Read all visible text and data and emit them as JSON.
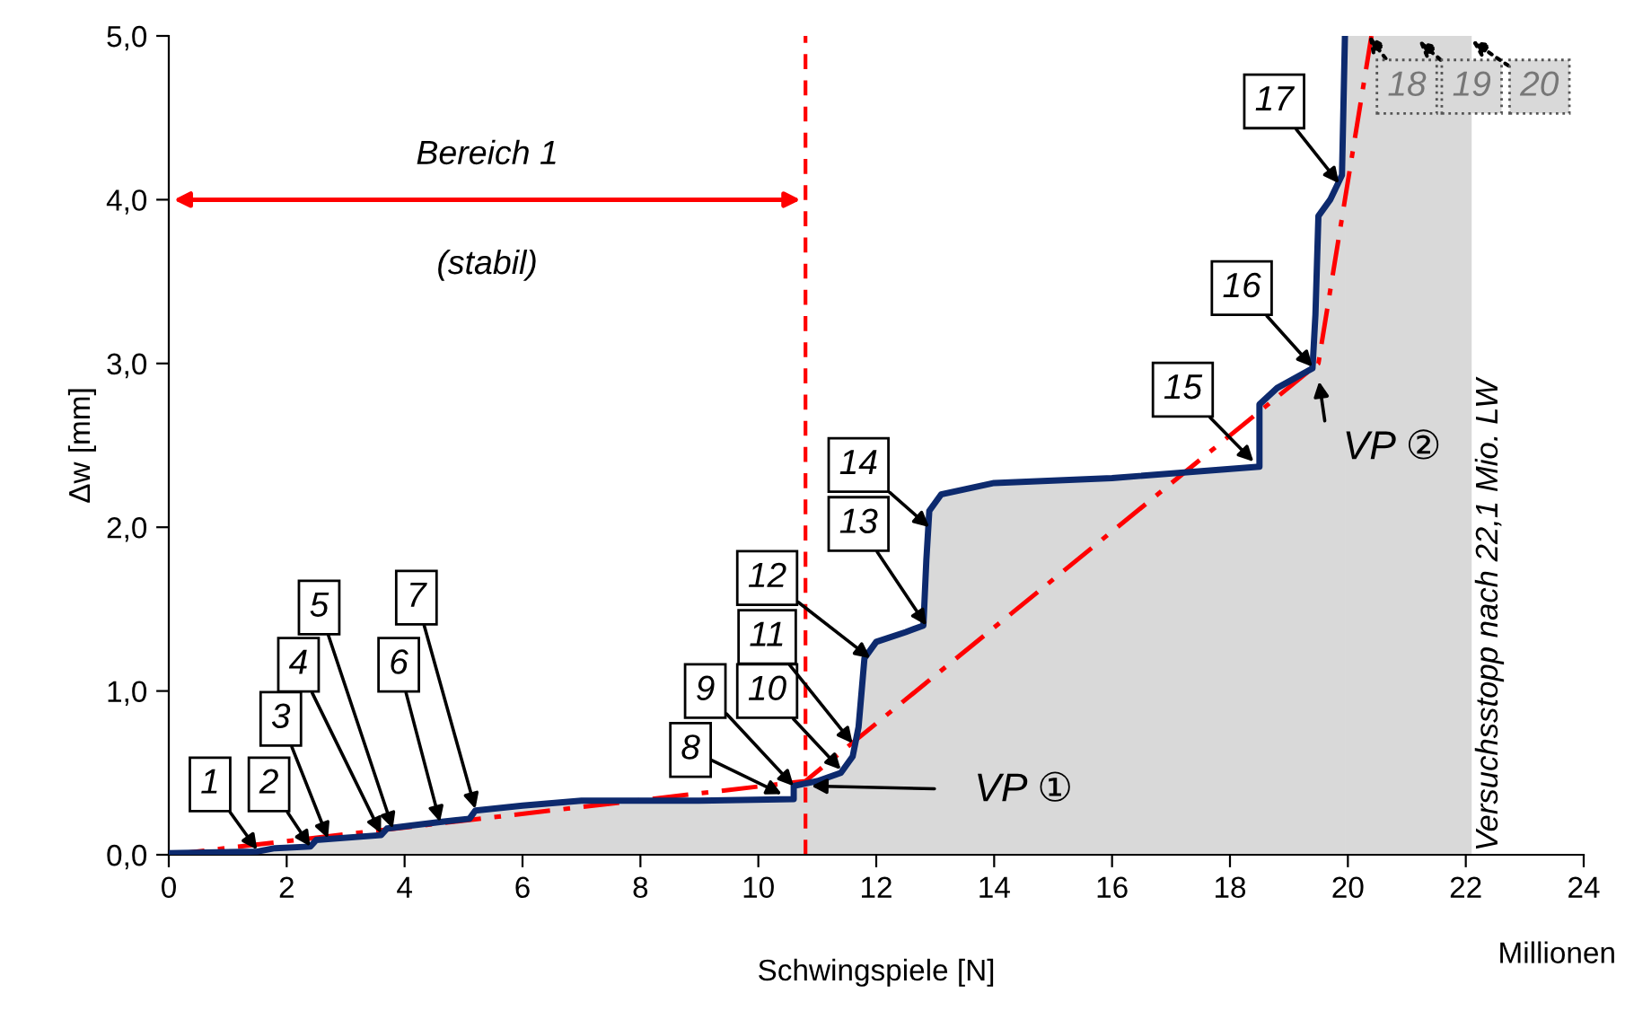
{
  "chart_data": {
    "type": "area",
    "xlabel": "Schwingspiele [N]",
    "ylabel": "Δw [mm]",
    "xlim": [
      0,
      24
    ],
    "xticks": [
      0,
      2,
      4,
      6,
      8,
      10,
      12,
      14,
      16,
      18,
      20,
      22,
      24
    ],
    "ylim": [
      0,
      5
    ],
    "yticks": [
      {
        "value": 0,
        "label": "0,0"
      },
      {
        "value": 1,
        "label": "1,0"
      },
      {
        "value": 2,
        "label": "2,0"
      },
      {
        "value": 3,
        "label": "3,0"
      },
      {
        "value": 4,
        "label": "4,0"
      },
      {
        "value": 5,
        "label": "5,0"
      }
    ],
    "x": [
      0,
      1.5,
      1.8,
      2.4,
      2.5,
      3.6,
      3.7,
      4.6,
      5.1,
      5.2,
      6,
      7,
      9,
      10.6,
      10.6,
      11.0,
      11.4,
      11.6,
      11.7,
      11.8,
      12.0,
      12.5,
      12.8,
      12.85,
      12.9,
      13.1,
      14,
      16,
      18.5,
      18.5,
      18.8,
      19.4,
      19.45,
      19.5,
      19.7,
      19.9,
      19.95
    ],
    "series": [
      {
        "color": "#0d2a6e",
        "values": [
          0.01,
          0.02,
          0.04,
          0.05,
          0.09,
          0.12,
          0.16,
          0.2,
          0.22,
          0.27,
          0.3,
          0.33,
          0.33,
          0.34,
          0.42,
          0.45,
          0.5,
          0.6,
          0.78,
          1.2,
          1.3,
          1.36,
          1.4,
          1.8,
          2.1,
          2.2,
          2.27,
          2.3,
          2.37,
          2.75,
          2.85,
          2.97,
          3.3,
          3.9,
          4.0,
          4.15,
          5.0
        ]
      },
      {
        "type": "line",
        "color": "#ff0000",
        "line_style": "dashed",
        "x": [
          0,
          10.8,
          19.5,
          20.4
        ],
        "values": [
          0,
          0.45,
          3.0,
          5.0
        ]
      }
    ],
    "ref_lines": [
      {
        "axis": "x",
        "value": 10.8,
        "color": "#ff0000",
        "line_style": "dashed"
      }
    ],
    "bands": [
      {
        "axis": "x",
        "from": 19.95,
        "to": 22.1,
        "color": "#d9d9d9",
        "label": "Versuchsstopp nach 22,1 Mio. LW"
      }
    ],
    "annotations": [
      {
        "text": "1",
        "x": 1.5,
        "y": 0.03
      },
      {
        "text": "2",
        "x": 2.4,
        "y": 0.05
      },
      {
        "text": "3",
        "x": 2.7,
        "y": 0.1
      },
      {
        "text": "4",
        "x": 3.6,
        "y": 0.13
      },
      {
        "text": "5",
        "x": 3.8,
        "y": 0.16
      },
      {
        "text": "6",
        "x": 4.6,
        "y": 0.2
      },
      {
        "text": "7",
        "x": 5.2,
        "y": 0.28
      },
      {
        "text": "8",
        "x": 10.4,
        "y": 0.37
      },
      {
        "text": "9",
        "x": 10.6,
        "y": 0.42
      },
      {
        "text": "10",
        "x": 11.4,
        "y": 0.52
      },
      {
        "text": "11",
        "x": 11.6,
        "y": 0.68
      },
      {
        "text": "12",
        "x": 11.9,
        "y": 1.2
      },
      {
        "text": "13",
        "x": 12.85,
        "y": 1.4
      },
      {
        "text": "14",
        "x": 12.9,
        "y": 2.0
      },
      {
        "text": "15",
        "x": 18.4,
        "y": 2.4
      },
      {
        "text": "16",
        "x": 19.4,
        "y": 2.98
      },
      {
        "text": "17",
        "x": 19.85,
        "y": 4.1
      },
      {
        "text": "18",
        "x": 20.35,
        "y": 5.0
      },
      {
        "text": "19",
        "x": 21.2,
        "y": 4.97
      },
      {
        "text": "20",
        "x": 22.1,
        "y": 4.97
      },
      {
        "text": "VP ①",
        "x": 10.9,
        "y": 0.42
      },
      "VP ②",
      "Bereich 1",
      "(stabil)",
      "Millionen"
    ]
  }
}
